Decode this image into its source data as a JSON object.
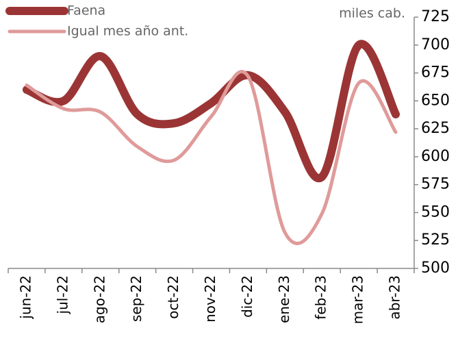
{
  "chart_data": {
    "type": "line",
    "unit_label": "miles cab.",
    "categories": [
      "jun-22",
      "jul-22",
      "ago-22",
      "sep-22",
      "oct-22",
      "nov-22",
      "dic-22",
      "ene-23",
      "feb-23",
      "mar-23",
      "abr-23"
    ],
    "series": [
      {
        "name": "Faena",
        "color": "#9b3535",
        "values": [
          660,
          650,
          690,
          638,
          630,
          648,
          673,
          640,
          582,
          700,
          638
        ]
      },
      {
        "name": "Igual mes año ant.",
        "color": "#e09a9a",
        "values": [
          664,
          643,
          640,
          609,
          597,
          636,
          672,
          532,
          549,
          666,
          622
        ]
      }
    ],
    "ylim": [
      500,
      725
    ],
    "yticks": [
      500,
      525,
      550,
      575,
      600,
      625,
      650,
      675,
      700,
      725
    ],
    "smooth": true,
    "y_axis_side": "right",
    "legend": "top-left"
  }
}
